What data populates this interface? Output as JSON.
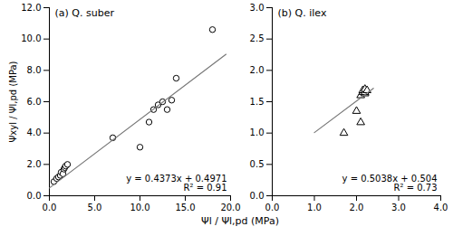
{
  "chart_data": [
    {
      "type": "scatter",
      "title": "(a) Q. suber",
      "xlabel": "Ψl / Ψl,pd (MPa)",
      "ylabel": "Ψxyl / Ψl,pd (MPa)",
      "series": [
        {
          "type": "scatter",
          "marker": "circle",
          "color": "#000000",
          "x": [
            0.5,
            0.8,
            1.0,
            1.2,
            1.3,
            1.5,
            1.6,
            1.7,
            1.8,
            2.0,
            7.0,
            10.0,
            11.0,
            11.5,
            12.0,
            12.5,
            13.0,
            13.5,
            14.0,
            18.0
          ],
          "values": [
            0.9,
            1.1,
            1.2,
            1.3,
            1.5,
            1.4,
            1.7,
            1.8,
            1.9,
            2.0,
            3.7,
            3.1,
            4.7,
            5.5,
            5.8,
            6.0,
            5.5,
            6.1,
            7.5,
            10.6
          ]
        },
        {
          "type": "line",
          "color": "#777777",
          "x": [
            0.0,
            19.5
          ],
          "values": [
            0.4971,
            9.02445
          ]
        }
      ],
      "annotations": [
        "y = 0.4373x + 0.4971",
        "R² = 0.91"
      ],
      "xlim": [
        0,
        20
      ],
      "xticks": [
        {
          "value": 0,
          "label": "0.0"
        },
        {
          "value": 5,
          "label": "5.0"
        },
        {
          "value": 10,
          "label": "10.0"
        },
        {
          "value": 15,
          "label": "15.0"
        },
        {
          "value": 20,
          "label": "20.0"
        }
      ],
      "ylim": [
        0,
        12
      ],
      "yticks": [
        {
          "value": 0,
          "label": "0.0"
        },
        {
          "value": 2,
          "label": "2.0"
        },
        {
          "value": 4,
          "label": "4.0"
        },
        {
          "value": 6,
          "label": "6.0"
        },
        {
          "value": 8,
          "label": "8.0"
        },
        {
          "value": 10,
          "label": "10.0"
        },
        {
          "value": 12,
          "label": "12.0"
        }
      ],
      "grid": false
    },
    {
      "type": "scatter",
      "title": "(b) Q. ilex",
      "series": [
        {
          "type": "scatter",
          "marker": "triangle",
          "color": "#000000",
          "x": [
            1.7,
            2.0,
            2.1,
            2.1,
            2.15,
            2.15,
            2.2,
            2.2,
            2.2,
            2.25
          ],
          "values": [
            1.0,
            1.35,
            1.17,
            1.6,
            1.65,
            1.68,
            1.63,
            1.65,
            1.7,
            1.68
          ]
        },
        {
          "type": "line",
          "color": "#777777",
          "x": [
            1.0,
            2.4
          ],
          "values": [
            1.0078,
            1.71312
          ]
        }
      ],
      "annotations": [
        "y = 0.5038x + 0.504",
        "R² = 0.73"
      ],
      "xlim": [
        0,
        4
      ],
      "xticks": [
        {
          "value": 0,
          "label": "0.0"
        },
        {
          "value": 1,
          "label": "1.0"
        },
        {
          "value": 2,
          "label": "2.0"
        },
        {
          "value": 3,
          "label": "3.0"
        },
        {
          "value": 4,
          "label": "4.0"
        }
      ],
      "ylim": [
        0,
        3
      ],
      "yticks": [
        {
          "value": 0,
          "label": "0.0"
        },
        {
          "value": 0.5,
          "label": "0.5"
        },
        {
          "value": 1,
          "label": "1.0"
        },
        {
          "value": 1.5,
          "label": "1.5"
        },
        {
          "value": 2,
          "label": "2.0"
        },
        {
          "value": 2.5,
          "label": "2.5"
        },
        {
          "value": 3,
          "label": "3.0"
        }
      ],
      "grid": false
    }
  ]
}
